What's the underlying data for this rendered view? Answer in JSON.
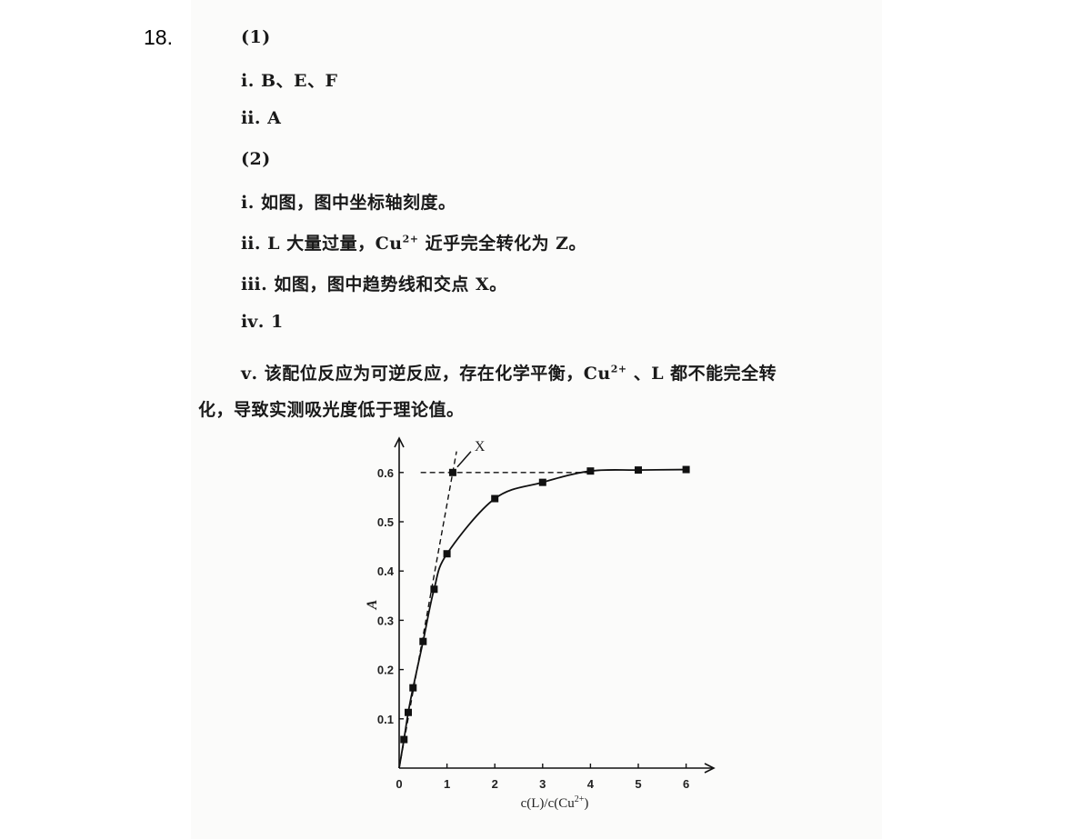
{
  "question_number": "18.",
  "lines": [
    {
      "label": "(1)"
    },
    {
      "label": "ⅰ. B、E、F"
    },
    {
      "label": "ⅱ. A"
    },
    {
      "label": "(2)"
    },
    {
      "label": "ⅰ. 如图，图中坐标轴刻度。"
    },
    {
      "pre": "ⅱ. L 大量过量，Cu",
      "sup": "2+",
      "post": " 近乎完全转化为 Z。"
    },
    {
      "label": "ⅲ. 如图，图中趋势线和交点 X。"
    },
    {
      "label": "ⅳ. 1"
    },
    {
      "pre": "ⅴ. 该配位反应为可逆反应，存在化学平衡，Cu",
      "sup": "2+",
      "post": " 、L 都不能完全转"
    },
    {
      "label": "化，导致实测吸光度低于理论值。"
    }
  ],
  "chart_data": {
    "type": "scatter",
    "title": "",
    "xlabel_pre": "c(L)/c(Cu",
    "xlabel_sup": "2+",
    "xlabel_post": ")",
    "ylabel": "A",
    "xlim": [
      0,
      6.5
    ],
    "ylim": [
      0,
      0.68
    ],
    "x_ticks": [
      "0",
      "1",
      "2",
      "3",
      "4",
      "5",
      "6"
    ],
    "y_ticks": [
      "0.1",
      "0.2",
      "0.3",
      "0.4",
      "0.5",
      "0.6"
    ],
    "grid": false,
    "points": [
      {
        "x": 0.1,
        "y": 0.058
      },
      {
        "x": 0.19,
        "y": 0.113
      },
      {
        "x": 0.29,
        "y": 0.163
      },
      {
        "x": 0.5,
        "y": 0.257
      },
      {
        "x": 0.73,
        "y": 0.363
      },
      {
        "x": 1.0,
        "y": 0.435
      },
      {
        "x": 2.0,
        "y": 0.547
      },
      {
        "x": 3.0,
        "y": 0.58
      },
      {
        "x": 4.0,
        "y": 0.603
      },
      {
        "x": 5.0,
        "y": 0.605
      },
      {
        "x": 6.0,
        "y": 0.606
      }
    ],
    "intersection": {
      "label": "X",
      "x": 1.12,
      "y": 0.6
    },
    "plateau_y": 0.6
  }
}
